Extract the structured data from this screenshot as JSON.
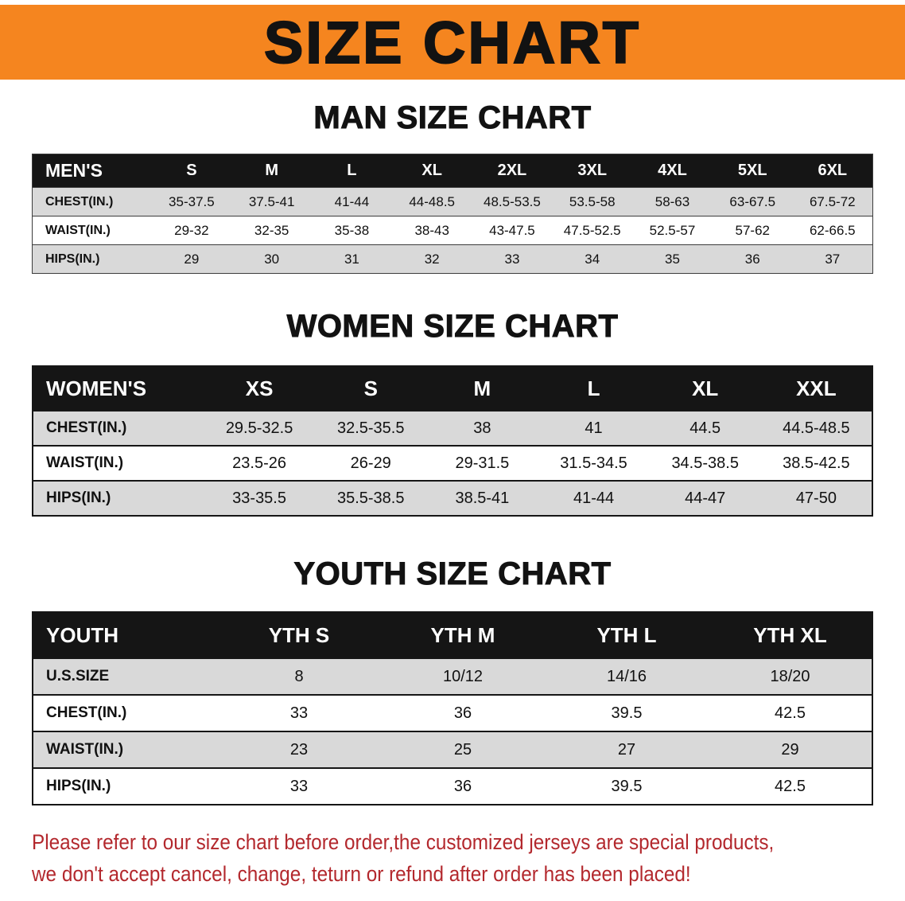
{
  "banner": {
    "title": "SIZE CHART"
  },
  "colors": {
    "banner_bg": "#f5851f",
    "header_bg": "#151515",
    "stripe": "#d9d9d9",
    "disclaimer_red": "#b3282d"
  },
  "sections": [
    {
      "id": "men",
      "heading": "MAN SIZE CHART",
      "header": [
        "MEN'S",
        "S",
        "M",
        "L",
        "XL",
        "2XL",
        "3XL",
        "4XL",
        "5XL",
        "6XL"
      ],
      "rows": [
        [
          "CHEST(IN.)",
          "35-37.5",
          "37.5-41",
          "41-44",
          "44-48.5",
          "48.5-53.5",
          "53.5-58",
          "58-63",
          "63-67.5",
          "67.5-72"
        ],
        [
          "WAIST(IN.)",
          "29-32",
          "32-35",
          "35-38",
          "38-43",
          "43-47.5",
          "47.5-52.5",
          "52.5-57",
          "57-62",
          "62-66.5"
        ],
        [
          "HIPS(IN.)",
          "29",
          "30",
          "31",
          "32",
          "33",
          "34",
          "35",
          "36",
          "37"
        ]
      ]
    },
    {
      "id": "women",
      "heading": "WOMEN SIZE CHART",
      "header": [
        "WOMEN'S",
        "XS",
        "S",
        "M",
        "L",
        "XL",
        "XXL"
      ],
      "rows": [
        [
          "CHEST(IN.)",
          "29.5-32.5",
          "32.5-35.5",
          "38",
          "41",
          "44.5",
          "44.5-48.5"
        ],
        [
          "WAIST(IN.)",
          "23.5-26",
          "26-29",
          "29-31.5",
          "31.5-34.5",
          "34.5-38.5",
          "38.5-42.5"
        ],
        [
          "HIPS(IN.)",
          "33-35.5",
          "35.5-38.5",
          "38.5-41",
          "41-44",
          "44-47",
          "47-50"
        ]
      ]
    },
    {
      "id": "youth",
      "heading": "YOUTH SIZE CHART",
      "header": [
        "YOUTH",
        "YTH S",
        "YTH M",
        "YTH L",
        "YTH XL"
      ],
      "rows": [
        [
          "U.S.SIZE",
          "8",
          "10/12",
          "14/16",
          "18/20"
        ],
        [
          "CHEST(IN.)",
          "33",
          "36",
          "39.5",
          "42.5"
        ],
        [
          "WAIST(IN.)",
          "23",
          "25",
          "27",
          "29"
        ],
        [
          "HIPS(IN.)",
          "33",
          "36",
          "39.5",
          "42.5"
        ]
      ]
    }
  ],
  "disclaimer": {
    "line1": "Please refer to our size chart before order,the customized jerseys are special products,",
    "line2": "we don't accept cancel, change, teturn or refund after order has been placed!"
  }
}
